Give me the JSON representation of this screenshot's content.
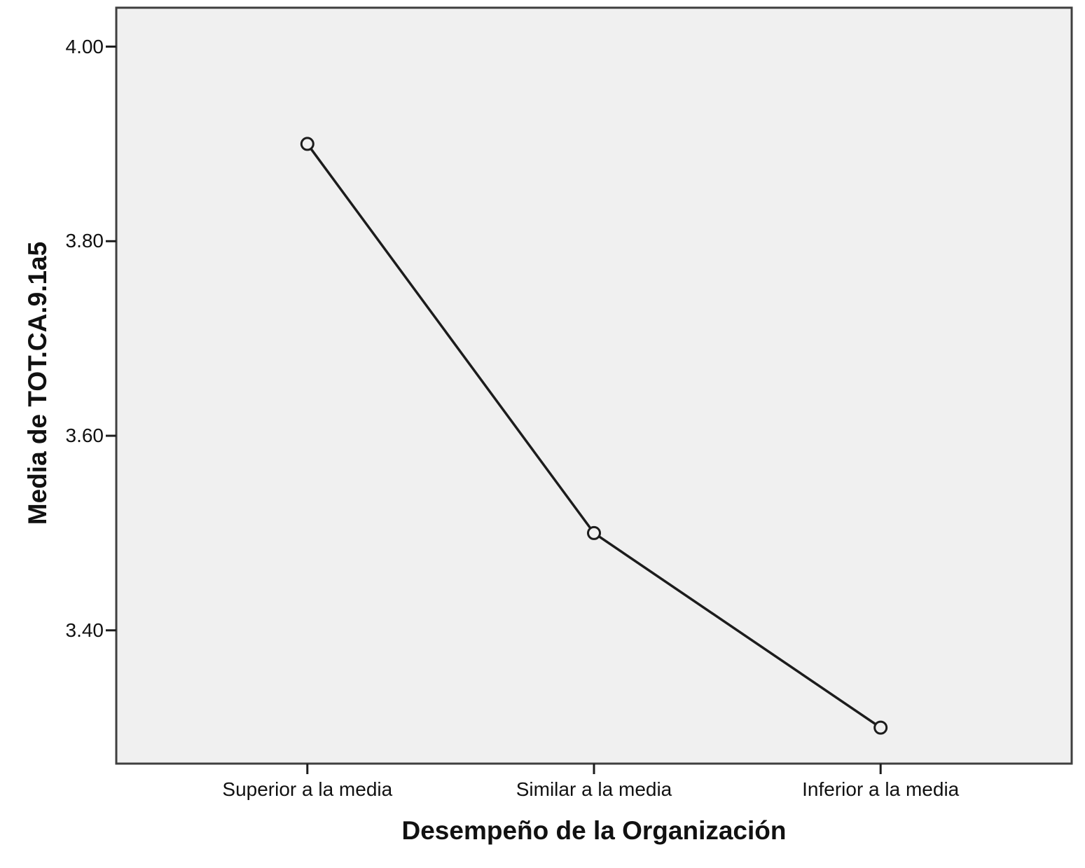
{
  "chart_data": {
    "type": "line",
    "title": "",
    "xlabel": "Desempeño de la Organización",
    "ylabel": "Media de TOT.CA.9.1a5",
    "categories": [
      "Superior a la media",
      "Similar a la media",
      "Inferior a la media"
    ],
    "series": [
      {
        "name": "Media de TOT.CA.9.1a5",
        "values": [
          3.9,
          3.5,
          3.3
        ]
      }
    ],
    "ylim": [
      3.263,
      4.04
    ],
    "yticks": {
      "values": [
        4.0,
        3.8,
        3.6,
        3.4
      ],
      "labels": [
        "4.00",
        "3.80",
        "3.60",
        "3.40"
      ]
    },
    "grid": false,
    "legend": "none",
    "marker": "open-circle",
    "colors": {
      "page_bg": "#ffffff",
      "plot_bg": "#f0f0f0",
      "plot_border": "#3f3f3f",
      "line": "#1c1c1c",
      "marker_stroke": "#1c1c1c",
      "marker_fill": "#f0f0f0",
      "tick": "#1c1c1c",
      "text": "#111111"
    }
  }
}
